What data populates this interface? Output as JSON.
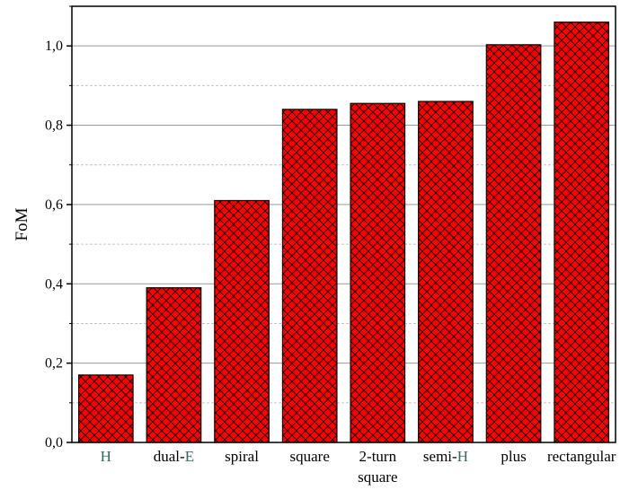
{
  "chart_data": {
    "type": "bar",
    "categories": [
      [
        "H"
      ],
      [
        "dual-E"
      ],
      [
        "spiral"
      ],
      [
        "square"
      ],
      [
        "2-turn",
        "square"
      ],
      [
        "semi-H"
      ],
      [
        "plus"
      ],
      [
        "rectangular"
      ]
    ],
    "values": [
      0.17,
      0.39,
      0.61,
      0.84,
      0.855,
      0.86,
      1.003,
      1.06
    ],
    "ylabel": "FoM",
    "ylim": [
      0,
      1.1
    ],
    "yticks": [
      0.0,
      0.2,
      0.4,
      0.6,
      0.8,
      1.0
    ],
    "ytick_labels": [
      "0,0",
      "0,2",
      "0,4",
      "0,6",
      "0,8",
      "1,0"
    ],
    "grid": true,
    "bar_color": "#ff0000",
    "bar_pattern": "crosshatch",
    "glyph_color": "#2e6b5e"
  }
}
